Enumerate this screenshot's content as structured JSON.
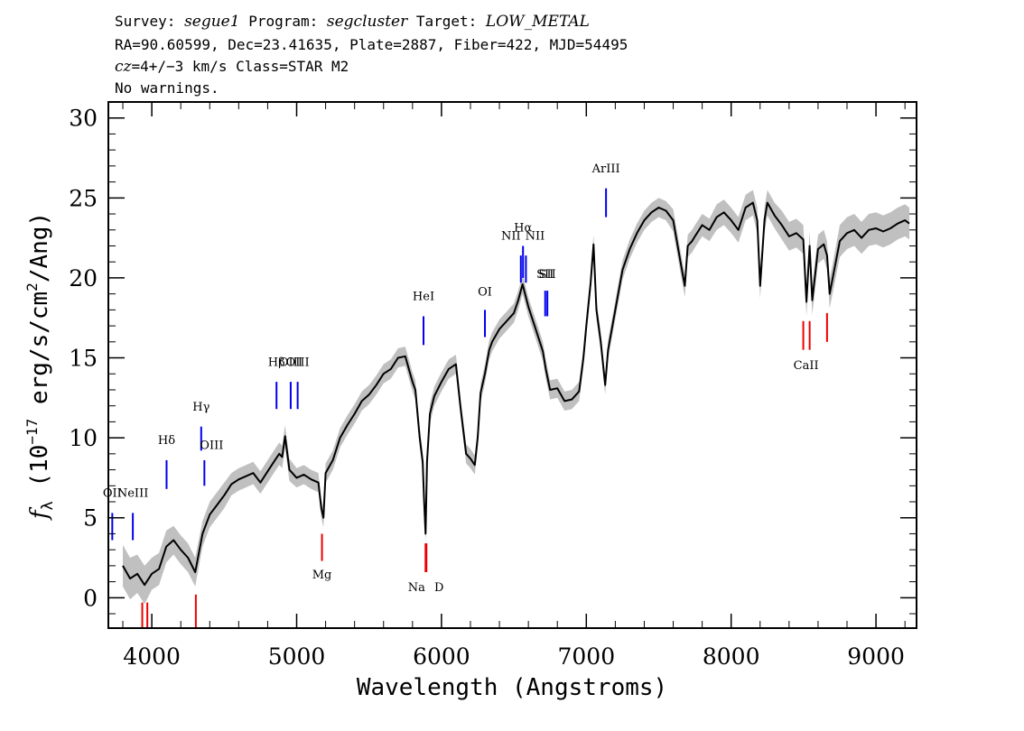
{
  "header": {
    "line1": {
      "survey_label": "Survey: ",
      "survey": "segue1",
      "program_label": " Program: ",
      "program": "segcluster",
      "target_label": " Target: ",
      "target": "LOW_METAL"
    },
    "line2": "RA=90.60599, Dec=23.41635, Plate=2887, Fiber=422, MJD=54495",
    "line3": {
      "cz_label": "cz",
      "cz_value": "=4+/−3",
      "cz_rest": " km/s Class=STAR M2"
    },
    "line4": "No warnings."
  },
  "colors": {
    "spectrum": "#000000",
    "error_band": "#c0c0c0",
    "emission_lines": "#0000ee",
    "absorption_lines": "#ee0000",
    "axes": "#000000"
  },
  "chart_data": {
    "type": "line",
    "title": "",
    "xlabel": "Wavelength (Angstroms)",
    "ylabel": "fλ (10⁻¹⁷ erg/s/cm²/Ang)",
    "ylabel_parts": {
      "f": "f",
      "lambda": "λ",
      "open": " (10",
      "exp": "−17",
      "mid": " erg/s/cm",
      "sq": "2",
      "close": "/Ang)"
    },
    "xlim": [
      3700,
      9280
    ],
    "ylim": [
      -1.9,
      31
    ],
    "x_ticks": [
      4000,
      5000,
      6000,
      7000,
      8000,
      9000
    ],
    "y_ticks": [
      0,
      5,
      10,
      15,
      20,
      25,
      30
    ],
    "grid": false,
    "spectrum": {
      "x": [
        3800,
        3850,
        3900,
        3950,
        4000,
        4050,
        4100,
        4150,
        4200,
        4250,
        4300,
        4350,
        4400,
        4450,
        4500,
        4550,
        4600,
        4650,
        4700,
        4750,
        4800,
        4850,
        4880,
        4900,
        4920,
        4950,
        5000,
        5050,
        5100,
        5150,
        5170,
        5185,
        5200,
        5250,
        5300,
        5350,
        5400,
        5450,
        5500,
        5550,
        5600,
        5650,
        5700,
        5750,
        5800,
        5820,
        5850,
        5870,
        5880,
        5890,
        5900,
        5920,
        5950,
        6000,
        6050,
        6100,
        6130,
        6150,
        6170,
        6200,
        6230,
        6250,
        6270,
        6300,
        6330,
        6350,
        6400,
        6450,
        6500,
        6530,
        6560,
        6600,
        6650,
        6700,
        6720,
        6750,
        6800,
        6850,
        6900,
        6950,
        6980,
        7000,
        7030,
        7050,
        7070,
        7100,
        7130,
        7150,
        7200,
        7250,
        7300,
        7350,
        7400,
        7450,
        7500,
        7550,
        7600,
        7650,
        7680,
        7700,
        7730,
        7750,
        7800,
        7850,
        7900,
        7950,
        8000,
        8050,
        8100,
        8150,
        8180,
        8200,
        8230,
        8250,
        8300,
        8350,
        8400,
        8450,
        8498,
        8520,
        8542,
        8560,
        8600,
        8640,
        8662,
        8680,
        8750,
        8800,
        8850,
        8900,
        8950,
        9000,
        9050,
        9100,
        9150,
        9200,
        9230
      ],
      "y": [
        2.0,
        1.2,
        1.5,
        0.8,
        1.5,
        1.8,
        3.2,
        3.6,
        3.0,
        2.5,
        1.6,
        4.0,
        5.2,
        5.8,
        6.4,
        7.1,
        7.4,
        7.6,
        7.8,
        7.2,
        7.9,
        8.6,
        9.0,
        8.8,
        10.1,
        8.0,
        7.5,
        7.7,
        7.4,
        7.2,
        5.6,
        5.0,
        7.8,
        8.6,
        10.0,
        10.8,
        11.5,
        12.3,
        12.7,
        13.3,
        14.0,
        14.3,
        15.0,
        15.1,
        13.5,
        13.0,
        10.0,
        8.5,
        6.0,
        4.0,
        8.5,
        11.5,
        12.6,
        13.5,
        14.3,
        14.6,
        12.0,
        10.5,
        9.0,
        8.7,
        8.3,
        10.0,
        12.8,
        14.0,
        15.5,
        16.0,
        16.8,
        17.3,
        17.8,
        18.6,
        19.6,
        18.2,
        16.8,
        15.4,
        14.3,
        13.0,
        13.1,
        12.3,
        12.4,
        12.9,
        15.0,
        17.0,
        19.7,
        22.1,
        18.0,
        16.0,
        13.3,
        15.5,
        18.0,
        20.5,
        21.8,
        22.8,
        23.6,
        24.1,
        24.4,
        24.2,
        23.6,
        21.0,
        19.5,
        22.0,
        22.3,
        22.6,
        23.3,
        23.0,
        23.8,
        24.1,
        23.6,
        23.0,
        24.4,
        24.7,
        23.6,
        19.5,
        23.6,
        24.7,
        23.9,
        23.3,
        22.6,
        22.8,
        22.4,
        18.5,
        22.0,
        18.6,
        21.8,
        22.1,
        21.4,
        19.0,
        22.3,
        22.8,
        23.0,
        22.5,
        23.0,
        23.1,
        22.9,
        23.1,
        23.4,
        23.6,
        23.4
      ],
      "error": [
        1.3,
        1.3,
        1.2,
        1.2,
        1.0,
        1.0,
        1.0,
        0.9,
        0.9,
        0.9,
        0.9,
        0.8,
        0.8,
        0.8,
        0.8,
        0.7,
        0.7,
        0.7,
        0.7,
        0.7,
        0.7,
        0.7,
        0.7,
        0.7,
        0.7,
        0.7,
        0.6,
        0.6,
        0.6,
        0.6,
        0.6,
        0.6,
        0.6,
        0.6,
        0.6,
        0.6,
        0.6,
        0.6,
        0.6,
        0.6,
        0.6,
        0.6,
        0.6,
        0.6,
        0.6,
        0.6,
        0.6,
        0.6,
        0.6,
        0.6,
        0.6,
        0.6,
        0.6,
        0.6,
        0.6,
        0.6,
        0.6,
        0.6,
        0.6,
        0.6,
        0.6,
        0.6,
        0.6,
        0.6,
        0.6,
        0.6,
        0.6,
        0.6,
        0.6,
        0.6,
        0.6,
        0.6,
        0.6,
        0.6,
        0.6,
        0.6,
        0.6,
        0.6,
        0.6,
        0.6,
        0.6,
        0.6,
        0.6,
        0.6,
        0.6,
        0.6,
        0.6,
        0.6,
        0.6,
        0.6,
        0.6,
        0.6,
        0.6,
        0.6,
        0.6,
        0.6,
        0.7,
        0.7,
        0.7,
        0.7,
        0.7,
        0.7,
        0.7,
        0.7,
        0.8,
        0.8,
        0.8,
        0.8,
        0.8,
        0.8,
        0.8,
        0.8,
        0.8,
        0.8,
        0.8,
        0.9,
        0.9,
        0.9,
        0.9,
        0.9,
        0.9,
        0.9,
        0.9,
        0.9,
        0.9,
        0.9,
        1.0,
        1.0,
        1.0,
        1.0,
        1.0,
        1.0,
        1.0,
        1.0,
        1.0,
        1.0,
        1.0
      ]
    },
    "line_markers": [
      {
        "label": "OII",
        "x": 3727,
        "y_from": 3.6,
        "y_to": 5.3,
        "kind": "emission",
        "label_y": 6.3,
        "label_dx": 0
      },
      {
        "label": "NeIII",
        "x": 3869,
        "y_from": 3.6,
        "y_to": 5.3,
        "kind": "emission",
        "label_y": 6.3,
        "label_dx": 0
      },
      {
        "label": "Hδ",
        "x": 4102,
        "y_from": 6.8,
        "y_to": 8.6,
        "kind": "emission",
        "label_y": 9.6,
        "label_dx": 0
      },
      {
        "label": "Hγ",
        "x": 4341,
        "y_from": 9.2,
        "y_to": 10.7,
        "kind": "emission",
        "label_y": 11.7,
        "label_dx": 0
      },
      {
        "label": "OIII",
        "x": 4363,
        "y_from": 7.0,
        "y_to": 8.6,
        "kind": "emission",
        "label_y": 9.3,
        "label_dx": 8
      },
      {
        "label": "Hβ",
        "x": 4861,
        "y_from": 11.8,
        "y_to": 13.5,
        "kind": "emission",
        "label_y": 14.5,
        "label_dx": 0
      },
      {
        "label": "OIII",
        "x": 4959,
        "y_from": 11.8,
        "y_to": 13.5,
        "kind": "emission",
        "label_y": 14.5,
        "label_dx": 0
      },
      {
        "label": "OIII",
        "x": 5007,
        "y_from": 11.8,
        "y_to": 13.5,
        "kind": "emission",
        "label_y": 14.5,
        "label_dx": 0
      },
      {
        "label": "HeI",
        "x": 5876,
        "y_from": 15.8,
        "y_to": 17.6,
        "kind": "emission",
        "label_y": 18.6,
        "label_dx": 0
      },
      {
        "label": "OI",
        "x": 6300,
        "y_from": 16.3,
        "y_to": 18.0,
        "kind": "emission",
        "label_y": 18.9,
        "label_dx": 0
      },
      {
        "label": "NII",
        "x": 6548,
        "y_from": 19.7,
        "y_to": 21.4,
        "kind": "emission",
        "label_y": 22.4,
        "label_dx": -11
      },
      {
        "label": "Hα",
        "x": 6563,
        "y_from": 20.0,
        "y_to": 22.0,
        "kind": "emission",
        "label_y": 22.9,
        "label_dx": 0
      },
      {
        "label": "NII",
        "x": 6583,
        "y_from": 19.7,
        "y_to": 21.4,
        "kind": "emission",
        "label_y": 22.4,
        "label_dx": 10
      },
      {
        "label": "SII",
        "x": 6716,
        "y_from": 17.6,
        "y_to": 19.2,
        "kind": "emission",
        "label_y": 20.0,
        "label_dx": 0
      },
      {
        "label": "SII",
        "x": 6731,
        "y_from": 17.6,
        "y_to": 19.2,
        "kind": "emission",
        "label_y": 20.0,
        "label_dx": 0
      },
      {
        "label": "ArIII",
        "x": 7136,
        "y_from": 23.8,
        "y_to": 25.6,
        "kind": "emission",
        "label_y": 26.6,
        "label_dx": 0
      },
      {
        "label": "",
        "x": 3934,
        "y_from": -1.9,
        "y_to": -0.3,
        "kind": "absorption",
        "label_y": -2.9,
        "label_dx": 0
      },
      {
        "label": "",
        "x": 3969,
        "y_from": -1.9,
        "y_to": -0.3,
        "kind": "absorption",
        "label_y": -2.9,
        "label_dx": 0
      },
      {
        "label": "",
        "x": 4304,
        "y_from": -1.9,
        "y_to": 0.2,
        "kind": "absorption",
        "label_y": -2.9,
        "label_dx": 0
      },
      {
        "label": "Mg",
        "x": 5175,
        "y_from": 2.3,
        "y_to": 4.0,
        "kind": "absorption",
        "label_y": 1.2,
        "label_dx": 0
      },
      {
        "label": "Na",
        "x": 5890,
        "y_from": 1.6,
        "y_to": 3.4,
        "kind": "absorption",
        "label_y": 0.4,
        "label_dx": -10
      },
      {
        "label": "D",
        "x": 5896,
        "y_from": 1.6,
        "y_to": 3.4,
        "kind": "absorption",
        "label_y": 0.4,
        "label_dx": 14
      },
      {
        "label": "",
        "x": 8498,
        "y_from": 15.5,
        "y_to": 17.3,
        "kind": "absorption",
        "label_y": 14.3,
        "label_dx": 0
      },
      {
        "label": "CaII",
        "x": 8542,
        "y_from": 15.5,
        "y_to": 17.3,
        "kind": "absorption",
        "label_y": 14.3,
        "label_dx": -4
      },
      {
        "label": "",
        "x": 8662,
        "y_from": 16.0,
        "y_to": 17.8,
        "kind": "absorption",
        "label_y": 14.8,
        "label_dx": 0
      }
    ]
  }
}
